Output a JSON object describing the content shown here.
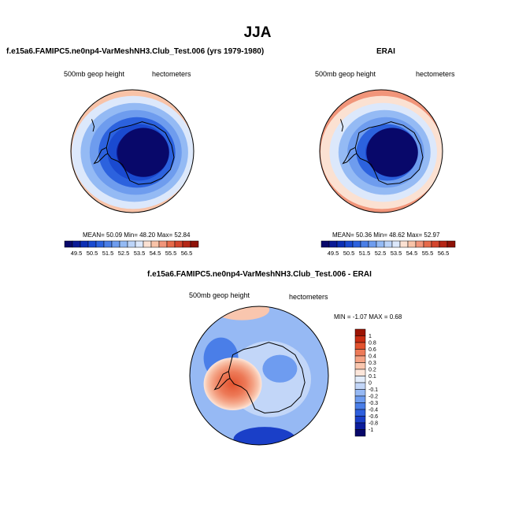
{
  "page": {
    "title": "JJA"
  },
  "chart_data": [
    {
      "type": "heatmap",
      "title": "f.e15a6.FAMIPC5.ne0np4-VarMeshNH3.Club_Test.006 (yrs 1979-1980)",
      "left_label": "500mb geop height",
      "right_label": "hectometers",
      "stats": {
        "mean_label": "MEAN=",
        "mean": "50.09",
        "min_label": "Min=",
        "min": "48.20",
        "max_label": "Max=",
        "max": "52.84"
      },
      "colorbar": {
        "orientation": "horizontal",
        "ticks": [
          "49.5",
          "50.5",
          "51.5",
          "52.5",
          "53.5",
          "54.5",
          "55.5",
          "56.5"
        ],
        "range": [
          49,
          57
        ]
      },
      "field": {
        "center_value": 48.8,
        "edge_value": 52.8,
        "gradient_min": 49.5,
        "gradient_max": 53.0
      }
    },
    {
      "type": "heatmap",
      "title": "ERAI",
      "left_label": "500mb geop height",
      "right_label": "hectometers",
      "stats": {
        "mean_label": "MEAN=",
        "mean": "50.36",
        "min_label": "Min=",
        "min": "48.62",
        "max_label": "Max=",
        "max": "52.97"
      },
      "colorbar": {
        "orientation": "horizontal",
        "ticks": [
          "49.5",
          "50.5",
          "51.5",
          "52.5",
          "53.5",
          "54.5",
          "55.5",
          "56.5"
        ],
        "range": [
          49,
          57
        ]
      },
      "field": {
        "center_value": 49.2,
        "edge_value": 52.9,
        "gradient_min": 49.5,
        "gradient_max": 53.0
      }
    },
    {
      "type": "heatmap",
      "title": "f.e15a6.FAMIPC5.ne0np4-VarMeshNH3.Club_Test.006 - ERAI",
      "left_label": "500mb geop height",
      "right_label": "hectometers",
      "stats": {
        "min_label": "MIN =",
        "min": "-1.07",
        "max_label": "MAX =",
        "max": "0.68"
      },
      "colorbar": {
        "orientation": "vertical",
        "ticks": [
          "1",
          "0.8",
          "0.6",
          "0.4",
          "0.3",
          "0.2",
          "0.1",
          "0",
          "-0.1",
          "-0.2",
          "-0.3",
          "-0.4",
          "-0.6",
          "-0.8",
          "-1"
        ],
        "range": [
          -1.07,
          1.07
        ]
      },
      "field": {
        "background_value": -0.2,
        "positive_anomaly": 0.68,
        "negative_anomaly": -0.5
      }
    }
  ],
  "colors": {
    "seq_scale": [
      "#08086a",
      "#0a1a96",
      "#0c2fb4",
      "#1a4ad0",
      "#2c62de",
      "#4a7ee6",
      "#6e9cee",
      "#94baf4",
      "#bcd4f8",
      "#dce8fb",
      "#fbe1d2",
      "#f8c3a8",
      "#f1957a",
      "#e66a4a",
      "#d3452d",
      "#b52616",
      "#8e1208"
    ],
    "diff_scale": [
      "#08086a",
      "#0c1d9c",
      "#1a3fc8",
      "#2e5fde",
      "#4a7ee8",
      "#6e9cf0",
      "#96b9f4",
      "#c2d6f8",
      "#e2ecfb",
      "#fde6da",
      "#f9c6ae",
      "#f4a284",
      "#ed7a58",
      "#e3532f",
      "#c92d13",
      "#9c1404"
    ],
    "continent_outline": "#000000"
  }
}
